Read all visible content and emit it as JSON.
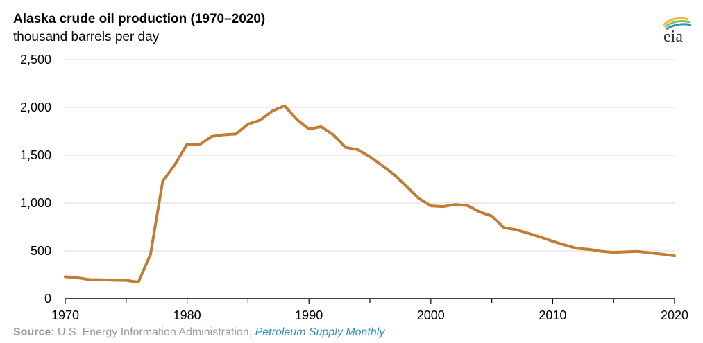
{
  "header": {
    "title": "Alaska crude oil production (1970–2020)",
    "subtitle": "thousand barrels per day",
    "logo_text": "eia"
  },
  "source": {
    "label": "Source:",
    "text": " U.S. Energy Information Administration, ",
    "link": "Petroleum Supply Monthly"
  },
  "colors": {
    "line": "#c07d33",
    "grid": "#d9d9d9",
    "axis": "#000000",
    "source_link": "#2f8fc4"
  },
  "chart_data": {
    "type": "line",
    "title": "Alaska crude oil production (1970–2020)",
    "ylabel": "thousand barrels per day",
    "xlabel": "",
    "xlim": [
      1970,
      2020
    ],
    "ylim": [
      0,
      2500
    ],
    "x_ticks": [
      1970,
      1980,
      1990,
      2000,
      2010,
      2020
    ],
    "y_ticks": [
      0,
      500,
      1000,
      1500,
      2000,
      2500
    ],
    "y_tick_labels": [
      "0",
      "500",
      "1,000",
      "1,500",
      "2,000",
      "2,500"
    ],
    "grid": "horizontal",
    "legend": "none",
    "series": [
      {
        "x": [
          1970,
          1971,
          1972,
          1973,
          1974,
          1975,
          1976,
          1977,
          1978,
          1979,
          1980,
          1981,
          1982,
          1983,
          1984,
          1985,
          1986,
          1987,
          1988,
          1989,
          1990,
          1991,
          1992,
          1993,
          1994,
          1995,
          1996,
          1997,
          1998,
          1999,
          2000,
          2001,
          2002,
          2003,
          2004,
          2005,
          2006,
          2007,
          2008,
          2009,
          2010,
          2011,
          2012,
          2013,
          2014,
          2015,
          2016,
          2017,
          2018,
          2019,
          2020
        ],
        "values": [
          229,
          218,
          199,
          198,
          193,
          191,
          173,
          464,
          1229,
          1401,
          1617,
          1609,
          1696,
          1714,
          1722,
          1825,
          1867,
          1962,
          2017,
          1874,
          1773,
          1798,
          1714,
          1582,
          1559,
          1484,
          1393,
          1296,
          1175,
          1050,
          970,
          963,
          984,
          974,
          908,
          864,
          741,
          722,
          683,
          645,
          600,
          561,
          526,
          515,
          496,
          483,
          490,
          494,
          479,
          466,
          448
        ]
      }
    ]
  }
}
